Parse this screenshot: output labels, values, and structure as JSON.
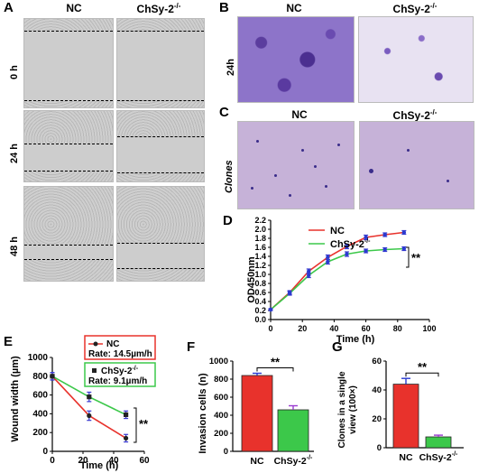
{
  "panelA": {
    "label": "A",
    "col_nc": "NC",
    "col_ko": "ChSy-2",
    "col_ko_sup": "-/-",
    "rows": [
      "0 h",
      "24 h",
      "48 h"
    ]
  },
  "panelB": {
    "label": "B",
    "col_nc": "NC",
    "col_ko": "ChSy-2",
    "col_ko_sup": "-/-",
    "row": "24h"
  },
  "panelC": {
    "label": "C",
    "col_nc": "NC",
    "col_ko": "ChSy-2",
    "col_ko_sup": "-/-",
    "row": "Clones"
  },
  "panelD": {
    "label": "D",
    "legend_nc": "NC",
    "legend_ko": "ChSy-2",
    "legend_ko_sup": "-/-",
    "sig": "**"
  },
  "panelE": {
    "label": "E",
    "legend_nc": "NC",
    "rate_nc": "Rate: 14.5µm/h",
    "legend_ko": "ChSy-2",
    "legend_ko_sup": "-/-",
    "rate_ko": "Rate: 9.1µm/h",
    "sig": "**"
  },
  "panelF": {
    "label": "F",
    "sig": "**"
  },
  "panelG": {
    "label": "G",
    "sig": "**"
  },
  "chart_data": [
    {
      "type": "line",
      "panel": "D",
      "xlabel": "Time (h)",
      "ylabel": "OD450nm",
      "xlim": [
        0,
        100
      ],
      "ylim": [
        0,
        2.2
      ],
      "xticks": [
        0,
        20,
        40,
        60,
        80,
        100
      ],
      "yticks": [
        0.0,
        0.2,
        0.4,
        0.6,
        0.8,
        1.0,
        1.2,
        1.4,
        1.6,
        1.8,
        2.0,
        2.2
      ],
      "ytick_labels": [
        "0.0",
        "0.2",
        "0.4",
        "0.6",
        "0.8",
        "1.0",
        "1.2",
        "1.4",
        "1.6",
        "1.8",
        "2.0",
        "2.2"
      ],
      "x": [
        0,
        12,
        24,
        36,
        48,
        60,
        72,
        84
      ],
      "series": [
        {
          "name": "NC",
          "color": "#e8322c",
          "values": [
            0.22,
            0.6,
            1.07,
            1.38,
            1.62,
            1.82,
            1.88,
            1.93
          ],
          "err": [
            0.02,
            0.04,
            0.05,
            0.05,
            0.05,
            0.05,
            0.04,
            0.04
          ]
        },
        {
          "name": "ChSy-2-/-",
          "color": "#3cc84a",
          "values": [
            0.22,
            0.58,
            0.98,
            1.28,
            1.45,
            1.52,
            1.55,
            1.57
          ],
          "err": [
            0.02,
            0.04,
            0.05,
            0.05,
            0.05,
            0.04,
            0.04,
            0.04
          ]
        }
      ]
    },
    {
      "type": "line",
      "panel": "E",
      "xlabel": "Time (h)",
      "ylabel": "Wound width (µm)",
      "xlim": [
        0,
        60
      ],
      "ylim": [
        0,
        1000
      ],
      "xticks": [
        0,
        20,
        40,
        60
      ],
      "yticks": [
        0,
        200,
        400,
        600,
        800,
        1000
      ],
      "x": [
        0,
        24,
        48
      ],
      "series": [
        {
          "name": "NC",
          "color": "#e8322c",
          "values": [
            800,
            380,
            140
          ],
          "err": [
            40,
            50,
            40
          ]
        },
        {
          "name": "ChSy-2-/-",
          "color": "#3cc84a",
          "values": [
            800,
            580,
            390
          ],
          "err": [
            40,
            50,
            40
          ]
        }
      ]
    },
    {
      "type": "bar",
      "panel": "F",
      "ylabel": "Invasion cells (n)",
      "ylim": [
        0,
        1000
      ],
      "yticks": [
        0,
        200,
        400,
        600,
        800,
        1000
      ],
      "categories": [
        "NC",
        "ChSy-2-/-"
      ],
      "values": [
        840,
        460
      ],
      "err": [
        25,
        45
      ],
      "colors": [
        "#e8322c",
        "#3cc84a"
      ]
    },
    {
      "type": "bar",
      "panel": "G",
      "ylabel": "Clones in a single view (100×)",
      "ylim": [
        0,
        60
      ],
      "yticks": [
        0,
        20,
        40,
        60
      ],
      "categories": [
        "NC",
        "ChSy-2-/-"
      ],
      "values": [
        44,
        7.5
      ],
      "err": [
        4,
        1.2
      ],
      "colors": [
        "#e8322c",
        "#3cc84a"
      ]
    }
  ]
}
